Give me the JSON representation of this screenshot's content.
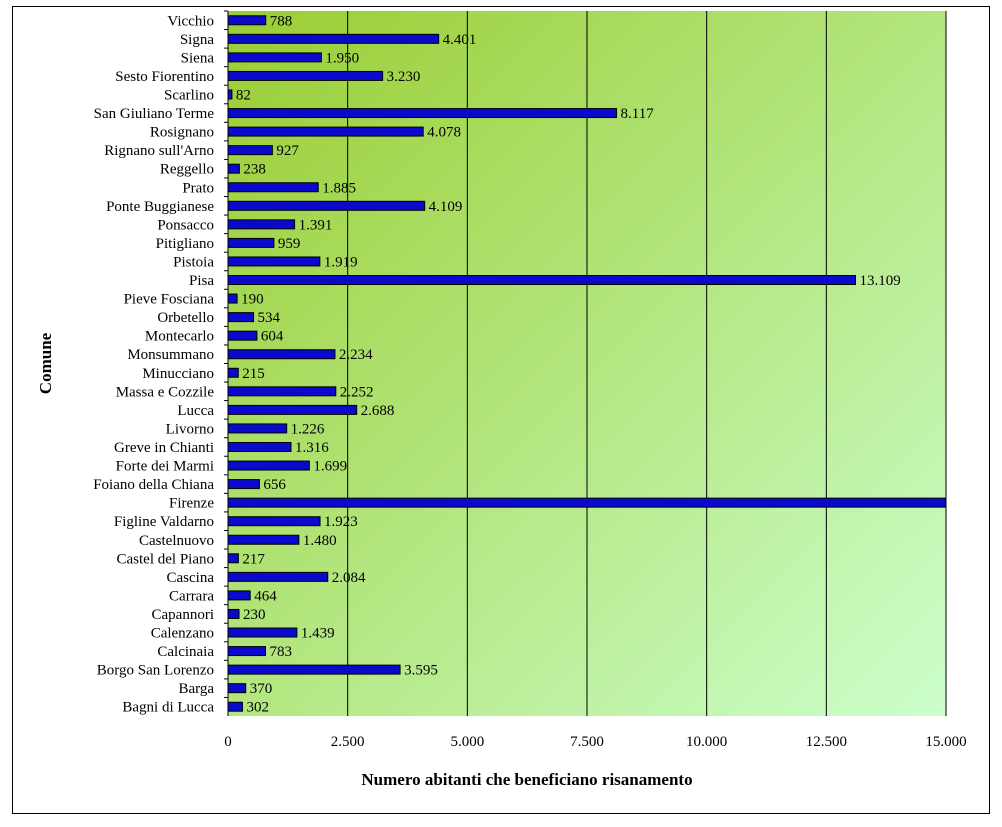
{
  "chart_data": {
    "type": "bar",
    "orientation": "horizontal",
    "xlabel": "Numero abitanti che beneficiano risanamento",
    "ylabel": "Comune",
    "xlim": [
      0,
      15000
    ],
    "xticks": [
      0,
      2500,
      5000,
      7500,
      10000,
      12500,
      15000
    ],
    "xtick_labels": [
      "0",
      "2.500",
      "5.000",
      "7.500",
      "10.000",
      "12.500",
      "15.000"
    ],
    "grid": "vertical",
    "legend": "none",
    "colors": {
      "bar_fill": "#0a0acc",
      "bar_stroke": "#000000",
      "bg_start": "#9acd32",
      "bg_end": "#ccffcc",
      "grid": "#000000"
    },
    "categories": [
      "Vicchio",
      "Signa",
      "Siena",
      "Sesto Fiorentino",
      "Scarlino",
      "San Giuliano Terme",
      "Rosignano",
      "Rignano sull'Arno",
      "Reggello",
      "Prato",
      "Ponte Buggianese",
      "Ponsacco",
      "Pitigliano",
      "Pistoia",
      "Pisa",
      "Pieve Fosciana",
      "Orbetello",
      "Montecarlo",
      "Monsummano",
      "Minucciano",
      "Massa e Cozzile",
      "Lucca",
      "Livorno",
      "Greve in Chianti",
      "Forte dei Marmi",
      "Foiano della Chiana",
      "Firenze",
      "Figline Valdarno",
      "Castelnuovo",
      "Castel del Piano",
      "Cascina",
      "Carrara",
      "Capannori",
      "Calenzano",
      "Calcinaia",
      "Borgo San Lorenzo",
      "Barga",
      "Bagni di Lucca"
    ],
    "values": [
      788,
      4401,
      1950,
      3230,
      82,
      8117,
      4078,
      927,
      238,
      1885,
      4109,
      1391,
      959,
      1919,
      13109,
      190,
      534,
      604,
      2234,
      215,
      2252,
      2688,
      1226,
      1316,
      1699,
      656,
      15000,
      1923,
      1480,
      217,
      2084,
      464,
      230,
      1439,
      783,
      3595,
      370,
      302
    ],
    "value_labels": [
      "788",
      "4.401",
      "1.950",
      "3.230",
      "82",
      "8.117",
      "4.078",
      "927",
      "238",
      "1.885",
      "4.109",
      "1.391",
      "959",
      "1.919",
      "13.109",
      "190",
      "534",
      "604",
      "2.234",
      "215",
      "2.252",
      "2.688",
      "1.226",
      "1.316",
      "1.699",
      "656",
      "",
      "1.923",
      "1.480",
      "217",
      "2.084",
      "464",
      "230",
      "1.439",
      "783",
      "3.595",
      "370",
      "302"
    ]
  }
}
